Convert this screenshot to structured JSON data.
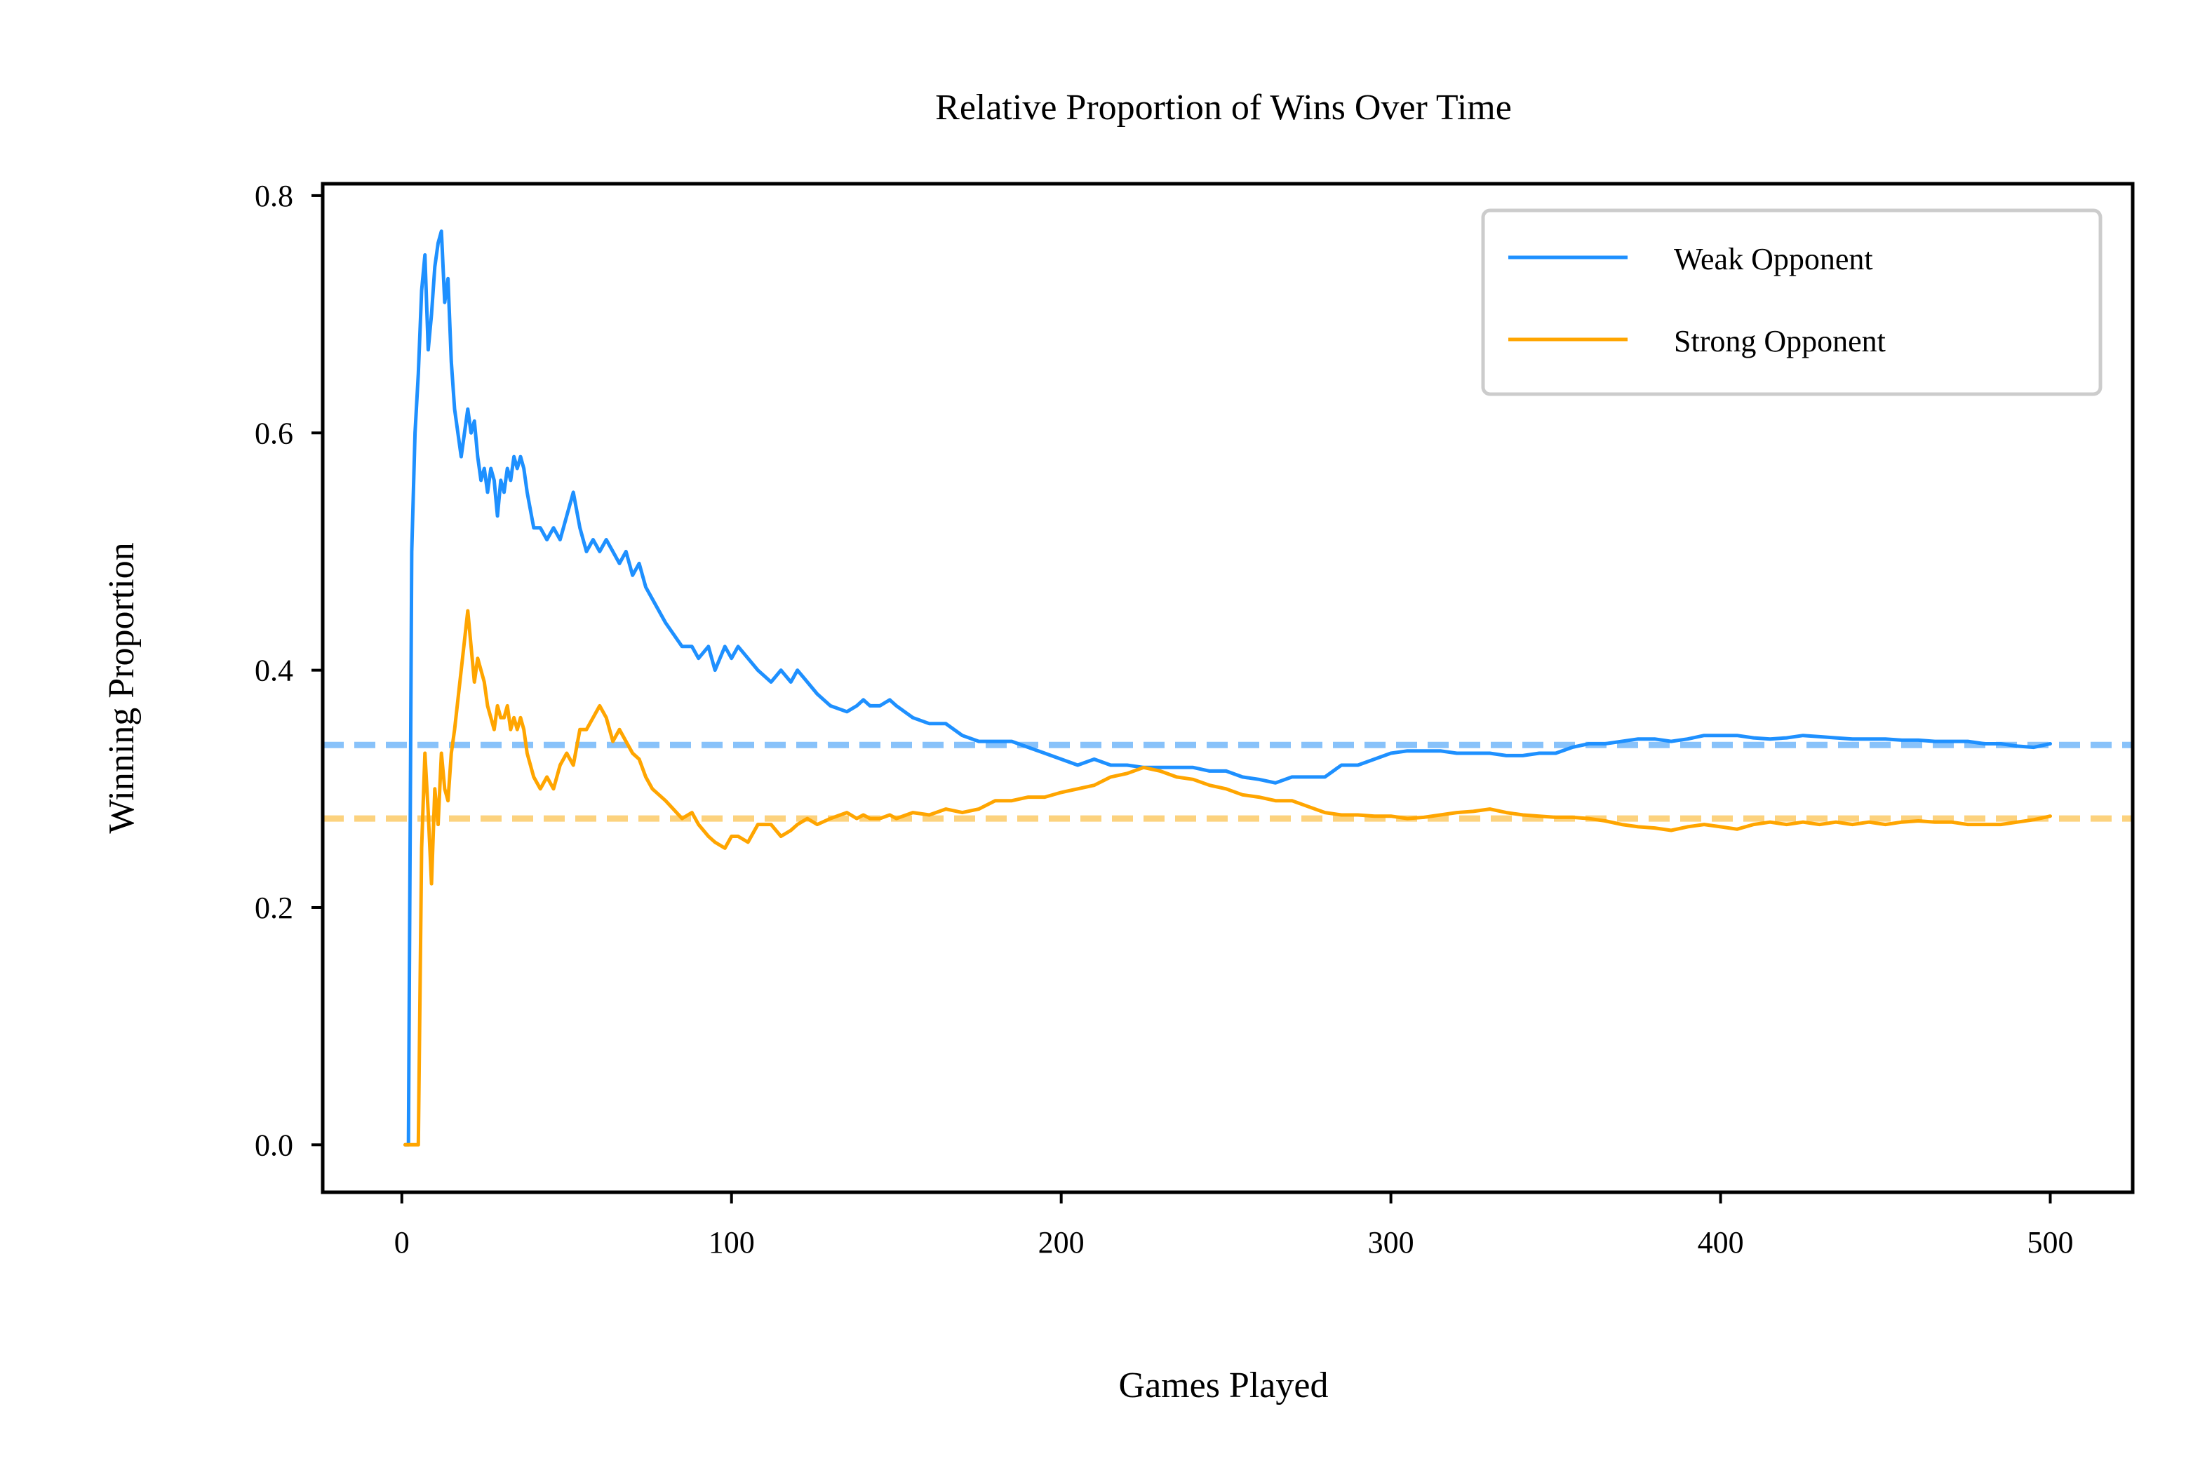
{
  "chart_data": {
    "type": "line",
    "title": "Relative Proportion of Wins Over Time",
    "xlabel": "Games Played",
    "ylabel": "Winning Proportion",
    "xlim": [
      -24,
      525
    ],
    "ylim": [
      -0.04,
      0.81
    ],
    "xticks": [
      0,
      100,
      200,
      300,
      400,
      500
    ],
    "yticks": [
      0.0,
      0.2,
      0.4,
      0.6,
      0.8
    ],
    "xtick_labels": [
      "0",
      "100",
      "200",
      "300",
      "400",
      "500"
    ],
    "ytick_labels": [
      "0.0",
      "0.2",
      "0.4",
      "0.6",
      "0.8"
    ],
    "grid": false,
    "legend_position": "top-right",
    "series": [
      {
        "name": "Weak Opponent",
        "color": "#1e90ff",
        "reference_line": 0.337,
        "x": [
          1,
          2,
          3,
          4,
          5,
          6,
          7,
          8,
          9,
          10,
          11,
          12,
          13,
          14,
          15,
          16,
          18,
          20,
          21,
          22,
          23,
          24,
          25,
          26,
          27,
          28,
          29,
          30,
          31,
          32,
          33,
          34,
          35,
          36,
          37,
          38,
          40,
          42,
          44,
          46,
          48,
          50,
          52,
          54,
          56,
          58,
          60,
          62,
          64,
          66,
          68,
          70,
          72,
          74,
          76,
          80,
          85,
          88,
          90,
          93,
          95,
          98,
          100,
          102,
          105,
          108,
          112,
          115,
          118,
          120,
          123,
          126,
          130,
          135,
          138,
          140,
          142,
          145,
          148,
          150,
          155,
          160,
          165,
          170,
          175,
          180,
          185,
          190,
          195,
          200,
          205,
          210,
          215,
          220,
          225,
          230,
          235,
          240,
          245,
          250,
          255,
          260,
          265,
          270,
          275,
          280,
          285,
          290,
          295,
          300,
          305,
          310,
          315,
          320,
          325,
          330,
          335,
          340,
          345,
          350,
          355,
          360,
          365,
          370,
          375,
          380,
          385,
          390,
          395,
          400,
          405,
          410,
          415,
          420,
          425,
          430,
          435,
          440,
          445,
          450,
          455,
          460,
          465,
          470,
          475,
          480,
          485,
          490,
          495,
          500
        ],
        "y": [
          0.0,
          0.0,
          0.5,
          0.6,
          0.65,
          0.72,
          0.75,
          0.67,
          0.7,
          0.74,
          0.76,
          0.77,
          0.71,
          0.73,
          0.66,
          0.62,
          0.58,
          0.62,
          0.6,
          0.61,
          0.58,
          0.56,
          0.57,
          0.55,
          0.57,
          0.56,
          0.53,
          0.56,
          0.55,
          0.57,
          0.56,
          0.58,
          0.57,
          0.58,
          0.57,
          0.55,
          0.52,
          0.52,
          0.51,
          0.52,
          0.51,
          0.53,
          0.55,
          0.52,
          0.5,
          0.51,
          0.5,
          0.51,
          0.5,
          0.49,
          0.5,
          0.48,
          0.49,
          0.47,
          0.46,
          0.44,
          0.42,
          0.42,
          0.41,
          0.42,
          0.4,
          0.42,
          0.41,
          0.42,
          0.41,
          0.4,
          0.39,
          0.4,
          0.39,
          0.4,
          0.39,
          0.38,
          0.37,
          0.365,
          0.37,
          0.375,
          0.37,
          0.37,
          0.375,
          0.37,
          0.36,
          0.355,
          0.355,
          0.345,
          0.34,
          0.34,
          0.34,
          0.335,
          0.33,
          0.325,
          0.32,
          0.325,
          0.32,
          0.32,
          0.318,
          0.318,
          0.318,
          0.318,
          0.315,
          0.315,
          0.31,
          0.308,
          0.305,
          0.31,
          0.31,
          0.31,
          0.32,
          0.32,
          0.325,
          0.33,
          0.332,
          0.332,
          0.332,
          0.33,
          0.33,
          0.33,
          0.328,
          0.328,
          0.33,
          0.33,
          0.335,
          0.338,
          0.338,
          0.34,
          0.342,
          0.342,
          0.34,
          0.342,
          0.345,
          0.345,
          0.345,
          0.343,
          0.342,
          0.343,
          0.345,
          0.344,
          0.343,
          0.342,
          0.342,
          0.342,
          0.341,
          0.341,
          0.34,
          0.34,
          0.34,
          0.338,
          0.338,
          0.336,
          0.335,
          0.338
        ]
      },
      {
        "name": "Strong Opponent",
        "color": "#ffa500",
        "reference_line": 0.275,
        "x": [
          1,
          2,
          3,
          4,
          5,
          6,
          7,
          8,
          9,
          10,
          11,
          12,
          13,
          14,
          15,
          16,
          18,
          20,
          21,
          22,
          23,
          24,
          25,
          26,
          27,
          28,
          29,
          30,
          31,
          32,
          33,
          34,
          35,
          36,
          37,
          38,
          40,
          42,
          44,
          46,
          48,
          50,
          52,
          54,
          56,
          58,
          60,
          62,
          64,
          66,
          68,
          70,
          72,
          74,
          76,
          80,
          85,
          88,
          90,
          93,
          95,
          98,
          100,
          102,
          105,
          108,
          112,
          115,
          118,
          120,
          123,
          126,
          130,
          135,
          138,
          140,
          142,
          145,
          148,
          150,
          155,
          160,
          165,
          170,
          175,
          180,
          185,
          190,
          195,
          200,
          205,
          210,
          215,
          220,
          225,
          230,
          235,
          240,
          245,
          250,
          255,
          260,
          265,
          270,
          275,
          280,
          285,
          290,
          295,
          300,
          305,
          310,
          315,
          320,
          325,
          330,
          335,
          340,
          345,
          350,
          355,
          360,
          365,
          370,
          375,
          380,
          385,
          390,
          395,
          400,
          405,
          410,
          415,
          420,
          425,
          430,
          435,
          440,
          445,
          450,
          455,
          460,
          465,
          470,
          475,
          480,
          485,
          490,
          495,
          500
        ],
        "y": [
          0.0,
          0.0,
          0.0,
          0.0,
          0.0,
          0.25,
          0.33,
          0.28,
          0.22,
          0.3,
          0.27,
          0.33,
          0.3,
          0.29,
          0.33,
          0.35,
          0.4,
          0.45,
          0.42,
          0.39,
          0.41,
          0.4,
          0.39,
          0.37,
          0.36,
          0.35,
          0.37,
          0.36,
          0.36,
          0.37,
          0.35,
          0.36,
          0.35,
          0.36,
          0.35,
          0.33,
          0.31,
          0.3,
          0.31,
          0.3,
          0.32,
          0.33,
          0.32,
          0.35,
          0.35,
          0.36,
          0.37,
          0.36,
          0.34,
          0.35,
          0.34,
          0.33,
          0.325,
          0.31,
          0.3,
          0.29,
          0.275,
          0.28,
          0.27,
          0.26,
          0.255,
          0.25,
          0.26,
          0.26,
          0.255,
          0.27,
          0.27,
          0.26,
          0.265,
          0.27,
          0.275,
          0.27,
          0.275,
          0.28,
          0.275,
          0.278,
          0.275,
          0.275,
          0.278,
          0.275,
          0.28,
          0.278,
          0.283,
          0.28,
          0.283,
          0.29,
          0.29,
          0.293,
          0.293,
          0.297,
          0.3,
          0.303,
          0.31,
          0.313,
          0.318,
          0.315,
          0.31,
          0.308,
          0.303,
          0.3,
          0.295,
          0.293,
          0.29,
          0.29,
          0.285,
          0.28,
          0.278,
          0.278,
          0.277,
          0.277,
          0.275,
          0.276,
          0.278,
          0.28,
          0.281,
          0.283,
          0.28,
          0.278,
          0.277,
          0.276,
          0.276,
          0.275,
          0.273,
          0.27,
          0.268,
          0.267,
          0.265,
          0.268,
          0.27,
          0.268,
          0.266,
          0.27,
          0.272,
          0.27,
          0.272,
          0.27,
          0.272,
          0.27,
          0.272,
          0.27,
          0.272,
          0.273,
          0.272,
          0.272,
          0.27,
          0.27,
          0.27,
          0.272,
          0.274,
          0.277
        ]
      }
    ]
  },
  "colors": {
    "weak": "#1e90ff",
    "strong": "#ffa500",
    "weak_reference": "#88c2fa",
    "strong_reference": "#fcd27e",
    "axes": "#000000",
    "legend_border": "#cccccc"
  }
}
